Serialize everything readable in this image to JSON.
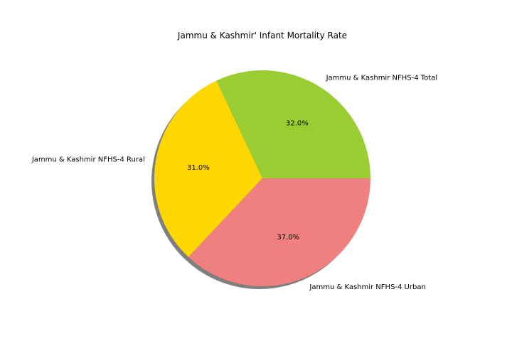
{
  "chart_data": {
    "type": "pie",
    "title": "Jammu & Kashmir' Infant Mortality Rate",
    "slices": [
      {
        "label": "Jammu & Kashmir NFHS-4 Total",
        "value": 32.0,
        "pct_label": "32.0%",
        "color": "#9acd32"
      },
      {
        "label": "Jammu & Kashmir NFHS-4 Rural",
        "value": 31.0,
        "pct_label": "31.0%",
        "color": "#ffd700"
      },
      {
        "label": "Jammu & Kashmir NFHS-4 Urban",
        "value": 37.0,
        "pct_label": "37.0%",
        "color": "#f08080"
      }
    ],
    "start_angle_deg": 0,
    "direction": "counterclockwise",
    "shadow": true,
    "legend": "none",
    "grid": false
  }
}
